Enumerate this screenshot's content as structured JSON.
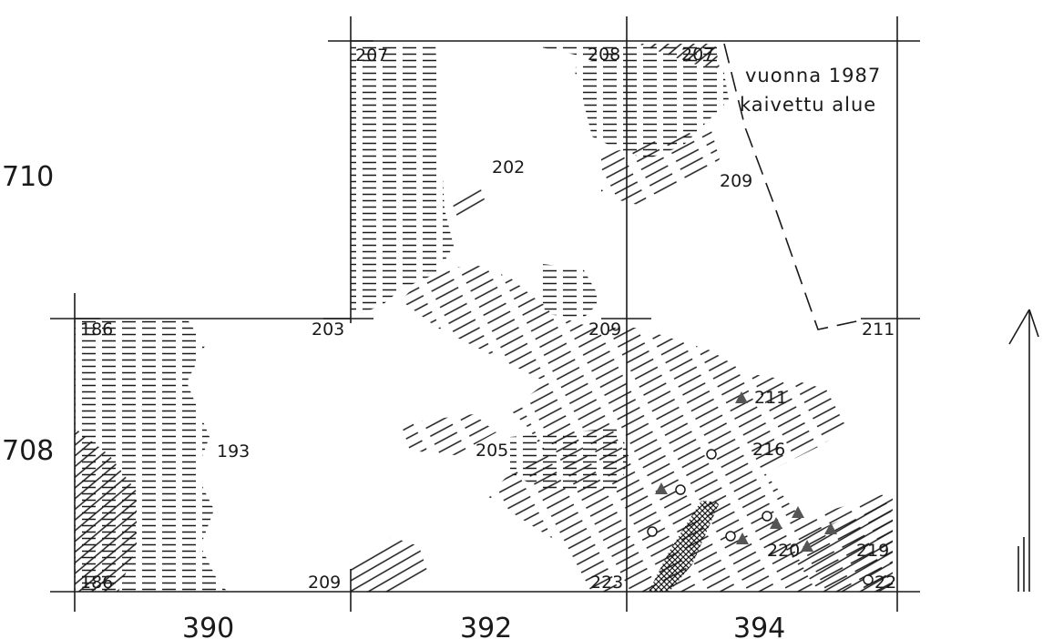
{
  "map": {
    "note_line1": "vuonna 1987",
    "note_line2": "kaivettu alue",
    "axis_y": [
      "710",
      "708"
    ],
    "axis_x": [
      "390",
      "392",
      "394"
    ],
    "elevations": {
      "e207a": "207",
      "e208": "208",
      "e207b": "207",
      "e202": "202",
      "e209_top": "209",
      "e186a": "186",
      "e203": "203",
      "e209_mid": "209",
      "e211_right": "211",
      "e193": "193",
      "e205": "205",
      "e211": "211",
      "e216": "216",
      "e186b": "186",
      "e209_bot": "209",
      "e223": "223",
      "e220": "220",
      "e219": "219",
      "e22": "22"
    },
    "colors": {
      "ink": "#1a1a1a",
      "find_triangle": "#555555"
    }
  }
}
